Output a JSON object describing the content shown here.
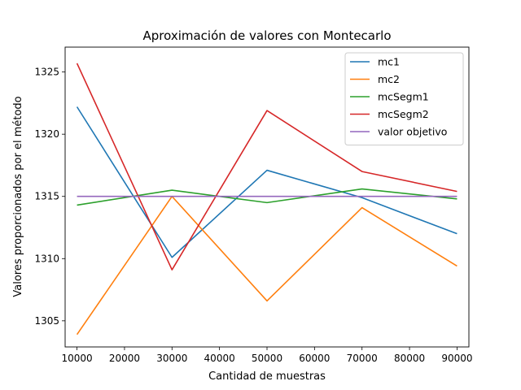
{
  "chart_data": {
    "type": "line",
    "title": "Aproximación de valores con Montecarlo",
    "xlabel": "Cantidad de muestras",
    "ylabel": "Valores proporcionados por el método",
    "x": [
      10000,
      30000,
      50000,
      70000,
      90000
    ],
    "xlim": [
      7500,
      92500
    ],
    "ylim": [
      1302.9,
      1327.0
    ],
    "xticks": [
      "10000",
      "20000",
      "30000",
      "40000",
      "50000",
      "60000",
      "70000",
      "80000",
      "90000"
    ],
    "yticks": [
      "1305",
      "1310",
      "1315",
      "1320",
      "1325"
    ],
    "grid": false,
    "legend_position": "upper right",
    "series": [
      {
        "name": "mc1",
        "color": "#1f77b4",
        "values": [
          1322.2,
          1310.1,
          1317.1,
          1314.9,
          1312.0
        ]
      },
      {
        "name": "mc2",
        "color": "#ff7f0e",
        "values": [
          1303.9,
          1315.0,
          1306.6,
          1314.1,
          1309.4
        ]
      },
      {
        "name": "mcSegm1",
        "color": "#2ca02c",
        "values": [
          1314.3,
          1315.5,
          1314.5,
          1315.6,
          1314.8
        ]
      },
      {
        "name": "mcSegm2",
        "color": "#d62728",
        "values": [
          1325.7,
          1309.1,
          1321.9,
          1317.0,
          1315.4
        ]
      },
      {
        "name": "valor objetivo",
        "color": "#9467bd",
        "values": [
          1315.0,
          1315.0,
          1315.0,
          1315.0,
          1315.0
        ]
      }
    ]
  }
}
